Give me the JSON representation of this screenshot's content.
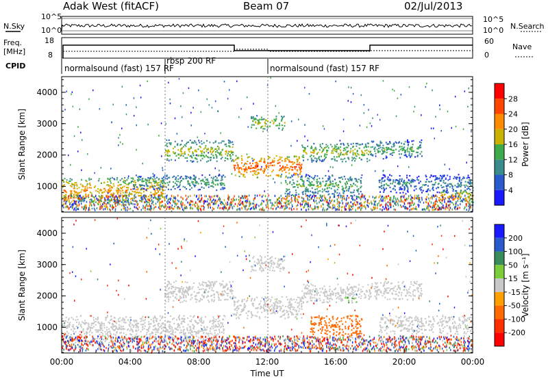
{
  "header": {
    "station": "Adak West (fitACF)",
    "beam": "Beam 07",
    "date": "02/Jul/2013"
  },
  "noise_panel": {
    "left_label": "N.Sky",
    "right_label": "N.Search",
    "left_ticks": [
      "10^5",
      "10^0"
    ],
    "right_ticks": [
      "10^5",
      "10^0"
    ]
  },
  "freq_panel": {
    "left_label_1": "Freq.",
    "left_label_2": "[MHz]",
    "left_ticks": [
      "18",
      "8"
    ],
    "right_label": "Nave",
    "right_ticks": [
      "60",
      "0"
    ]
  },
  "cpid": {
    "label": "CPID",
    "segments": [
      {
        "start_hour": 0,
        "end_hour": 6,
        "text": "normalsound (fast) 157 RF"
      },
      {
        "start_hour": 6,
        "end_hour": 12,
        "text": "rbsp 200 RF"
      },
      {
        "start_hour": 12,
        "end_hour": 24,
        "text": "normalsound (fast) 157 RF"
      }
    ]
  },
  "chart_data": [
    {
      "type": "heatmap",
      "parameter": "Power",
      "ylabel": "Slant Range [km]",
      "xlabel": "",
      "ylim": [
        180,
        4500
      ],
      "xlim_hours": [
        0,
        24
      ],
      "y_ticks": [
        "1000",
        "2000",
        "3000",
        "4000"
      ],
      "colorbar": {
        "label": "Power [dB]",
        "ticks": [
          "4",
          "8",
          "12",
          "16",
          "20",
          "24",
          "28"
        ],
        "colors": [
          "#1a1aff",
          "#2a5bcc",
          "#3a8c8c",
          "#3faa4a",
          "#c8b400",
          "#ff8c00",
          "#ff4500",
          "#ff0000"
        ]
      },
      "bands": [
        {
          "h0": 0,
          "h1": 6,
          "r0": 500,
          "r1": 1300,
          "value": 22
        },
        {
          "h0": 4,
          "h1": 9.5,
          "r0": 900,
          "r1": 1400,
          "value": 14
        },
        {
          "h0": 6,
          "h1": 10,
          "r0": 1800,
          "r1": 2500,
          "value": 18
        },
        {
          "h0": 10,
          "h1": 14,
          "r0": 1300,
          "r1": 2000,
          "value": 26
        },
        {
          "h0": 11,
          "h1": 13,
          "r0": 2800,
          "r1": 3300,
          "value": 18
        },
        {
          "h0": 13,
          "h1": 17.5,
          "r0": 700,
          "r1": 1400,
          "value": 15
        },
        {
          "h0": 14,
          "h1": 18,
          "r0": 1800,
          "r1": 2400,
          "value": 18
        },
        {
          "h0": 18,
          "h1": 21,
          "r0": 1900,
          "r1": 2500,
          "value": 14
        },
        {
          "h0": 18.5,
          "h1": 24,
          "r0": 800,
          "r1": 1400,
          "value": 11
        },
        {
          "h0": 22,
          "h1": 24,
          "r0": 500,
          "r1": 900,
          "value": 22
        }
      ]
    },
    {
      "type": "heatmap",
      "parameter": "Velocity",
      "ylabel": "Slant Range [km]",
      "xlabel": "Time UT",
      "ylim": [
        180,
        4500
      ],
      "xlim_hours": [
        0,
        24
      ],
      "y_ticks": [
        "1000",
        "2000",
        "3000",
        "4000"
      ],
      "x_ticks": [
        "00:00",
        "04:00",
        "08:00",
        "12:00",
        "16:00",
        "20:00",
        "00:00"
      ],
      "colorbar": {
        "label": "Velocity [m s⁻¹]",
        "ticks": [
          "200",
          "100",
          "50",
          "15",
          "-15",
          "-50",
          "-100",
          "-200"
        ],
        "colors": [
          "#1a1aff",
          "#2a5bcc",
          "#3a8c5a",
          "#7ccd3a",
          "#c8c8c8",
          "#ffa000",
          "#ff6a00",
          "#ff3000",
          "#ff0000"
        ]
      },
      "bands": [
        {
          "h0": 0,
          "h1": 9.5,
          "r0": 500,
          "r1": 1400,
          "value": 0
        },
        {
          "h0": 6,
          "h1": 10,
          "r0": 1800,
          "r1": 2500,
          "value": 0
        },
        {
          "h0": 10,
          "h1": 14,
          "r0": 1300,
          "r1": 2000,
          "value": 0
        },
        {
          "h0": 14.5,
          "h1": 17.5,
          "r0": 700,
          "r1": 1400,
          "value": -60
        },
        {
          "h0": 14,
          "h1": 18,
          "r0": 1800,
          "r1": 2400,
          "value": 0
        },
        {
          "h0": 16.5,
          "h1": 17.2,
          "r0": 1800,
          "r1": 2000,
          "value": 30
        },
        {
          "h0": 18,
          "h1": 21,
          "r0": 1900,
          "r1": 2500,
          "value": 0
        },
        {
          "h0": 18.5,
          "h1": 24,
          "r0": 800,
          "r1": 1400,
          "value": 0
        },
        {
          "h0": 11,
          "h1": 13,
          "r0": 2800,
          "r1": 3300,
          "value": 0
        }
      ]
    }
  ]
}
